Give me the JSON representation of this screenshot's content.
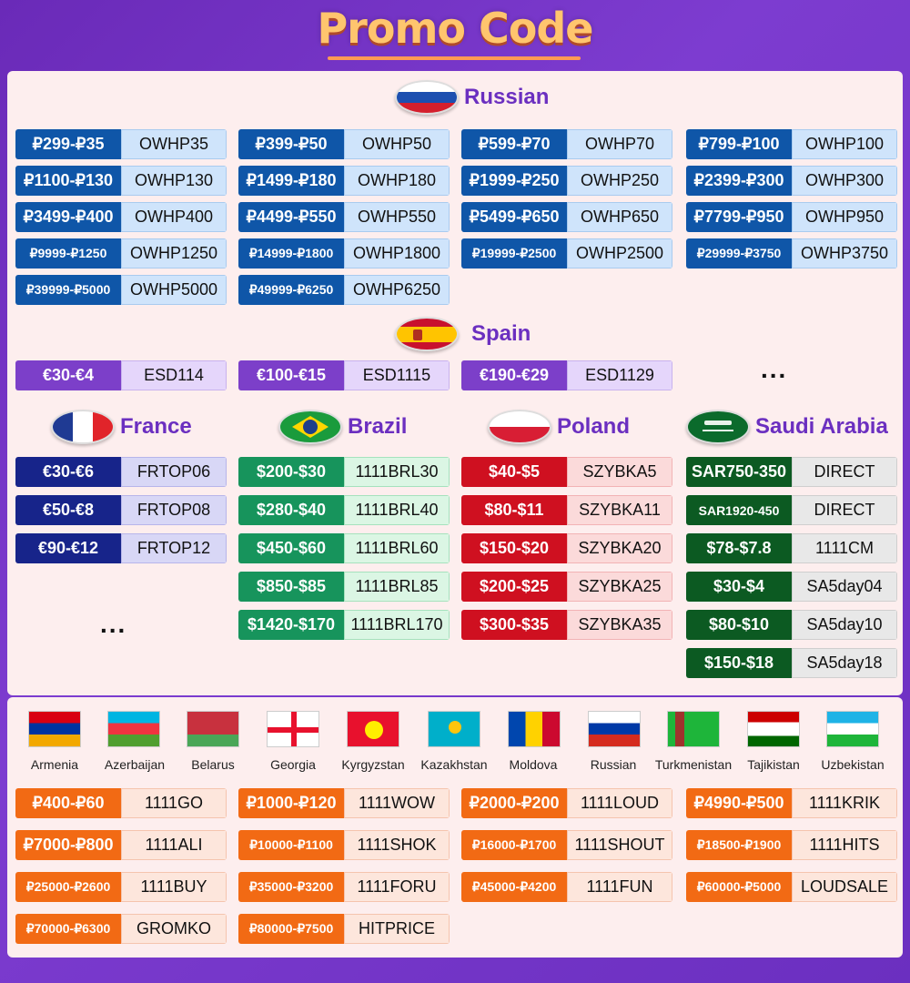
{
  "title": "Promo Code",
  "colors": {
    "russian_amt": "#0f56a8",
    "russian_code": "#cfe4fb",
    "spain_amt": "#7c3fc9",
    "spain_code": "#e5d6fb",
    "france_amt": "#17248a",
    "france_code": "#d8d7f6",
    "brazil_amt": "#17945c",
    "brazil_code": "#dbf6e4",
    "poland_amt": "#cf1020",
    "poland_code": "#fbdada",
    "saudi_amt": "#0c5a22",
    "saudi_code": "#e8e8e8",
    "cis_amt": "#f26a14",
    "cis_code": "#fde6dc"
  },
  "russian": {
    "label": "Russian",
    "rows": [
      {
        "amount": "₽299-₽35",
        "code": "OWHP35"
      },
      {
        "amount": "₽399-₽50",
        "code": "OWHP50"
      },
      {
        "amount": "₽599-₽70",
        "code": "OWHP70"
      },
      {
        "amount": "₽799-₽100",
        "code": "OWHP100"
      },
      {
        "amount": "₽1100-₽130",
        "code": "OWHP130"
      },
      {
        "amount": "₽1499-₽180",
        "code": "OWHP180"
      },
      {
        "amount": "₽1999-₽250",
        "code": "OWHP250"
      },
      {
        "amount": "₽2399-₽300",
        "code": "OWHP300"
      },
      {
        "amount": "₽3499-₽400",
        "code": "OWHP400"
      },
      {
        "amount": "₽4499-₽550",
        "code": "OWHP550"
      },
      {
        "amount": "₽5499-₽650",
        "code": "OWHP650"
      },
      {
        "amount": "₽7799-₽950",
        "code": "OWHP950"
      },
      {
        "amount": "₽9999-₽1250",
        "code": "OWHP1250"
      },
      {
        "amount": "₽14999-₽1800",
        "code": "OWHP1800"
      },
      {
        "amount": "₽19999-₽2500",
        "code": "OWHP2500"
      },
      {
        "amount": "₽29999-₽3750",
        "code": "OWHP3750"
      },
      {
        "amount": "₽39999-₽5000",
        "code": "OWHP5000"
      },
      {
        "amount": "₽49999-₽6250",
        "code": "OWHP6250"
      }
    ]
  },
  "spain": {
    "label": "Spain",
    "rows": [
      {
        "amount": "€30-€4",
        "code": "ESD114"
      },
      {
        "amount": "€100-€15",
        "code": "ESD1115"
      },
      {
        "amount": "€190-€29",
        "code": "ESD1129"
      }
    ],
    "more": "..."
  },
  "france": {
    "label": "France",
    "rows": [
      {
        "amount": "€30-€6",
        "code": "FRTOP06"
      },
      {
        "amount": "€50-€8",
        "code": "FRTOP08"
      },
      {
        "amount": "€90-€12",
        "code": "FRTOP12"
      }
    ],
    "more": "..."
  },
  "brazil": {
    "label": "Brazil",
    "rows": [
      {
        "amount": "$200-$30",
        "code": "1111BRL30"
      },
      {
        "amount": "$280-$40",
        "code": "1111BRL40"
      },
      {
        "amount": "$450-$60",
        "code": "1111BRL60"
      },
      {
        "amount": "$850-$85",
        "code": "1111BRL85"
      },
      {
        "amount": "$1420-$170",
        "code": "1111BRL170"
      }
    ]
  },
  "poland": {
    "label": "Poland",
    "rows": [
      {
        "amount": "$40-$5",
        "code": "SZYBKA5"
      },
      {
        "amount": "$80-$11",
        "code": "SZYBKA11"
      },
      {
        "amount": "$150-$20",
        "code": "SZYBKA20"
      },
      {
        "amount": "$200-$25",
        "code": "SZYBKA25"
      },
      {
        "amount": "$300-$35",
        "code": "SZYBKA35"
      }
    ]
  },
  "saudi": {
    "label": "Saudi Arabia",
    "rows": [
      {
        "amount": "SAR750-350",
        "code": "DIRECT"
      },
      {
        "amount": "SAR1920-450",
        "code": "DIRECT"
      },
      {
        "amount": "$78-$7.8",
        "code": "1111CM"
      },
      {
        "amount": "$30-$4",
        "code": "SA5day04"
      },
      {
        "amount": "$80-$10",
        "code": "SA5day10"
      },
      {
        "amount": "$150-$18",
        "code": "SA5day18"
      }
    ]
  },
  "cis": {
    "countries": [
      "Armenia",
      "Azerbaijan",
      "Belarus",
      "Georgia",
      "Kyrgyzstan",
      "Kazakhstan",
      "Moldova",
      "Russian",
      "Turkmenistan",
      "Tajikistan",
      "Uzbekistan"
    ],
    "rows": [
      {
        "amount": "₽400-₽60",
        "code": "1111GO"
      },
      {
        "amount": "₽1000-₽120",
        "code": "1111WOW"
      },
      {
        "amount": "₽2000-₽200",
        "code": "1111LOUD"
      },
      {
        "amount": "₽4990-₽500",
        "code": "1111KRIK"
      },
      {
        "amount": "₽7000-₽800",
        "code": "1111ALI"
      },
      {
        "amount": "₽10000-₽1100",
        "code": "1111SHOK"
      },
      {
        "amount": "₽16000-₽1700",
        "code": "1111SHOUT"
      },
      {
        "amount": "₽18500-₽1900",
        "code": "1111HITS"
      },
      {
        "amount": "₽25000-₽2600",
        "code": "1111BUY"
      },
      {
        "amount": "₽35000-₽3200",
        "code": "1111FORU"
      },
      {
        "amount": "₽45000-₽4200",
        "code": "1111FUN"
      },
      {
        "amount": "₽60000-₽5000",
        "code": "LOUDSALE"
      },
      {
        "amount": "₽70000-₽6300",
        "code": "GROMKO"
      },
      {
        "amount": "₽80000-₽7500",
        "code": "HITPRICE"
      }
    ]
  }
}
